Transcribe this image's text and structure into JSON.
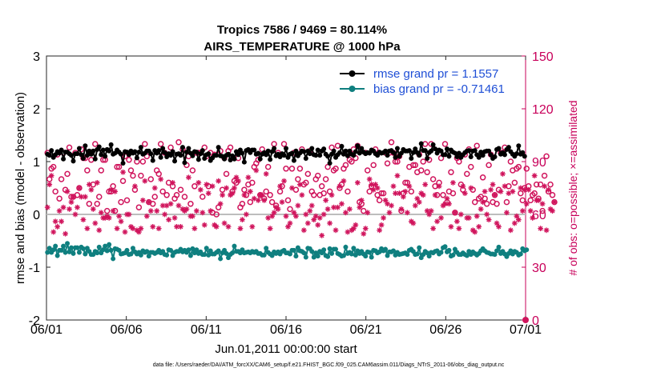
{
  "colors": {
    "rmse": "#000000",
    "bias": "#0f7f7f",
    "obs": "#d0145c",
    "zero_line": "#bdbdbd",
    "legend_text": "#1f4fd6",
    "right_axis": "#c8005a"
  },
  "chart_data": {
    "type": "line",
    "title": "Tropics 7586 / 9469 = 80.114%",
    "subtitle": "AIRS_TEMPERATURE @ 1000 hPa",
    "xlabel": "Jun.01,2011 00:00:00 start",
    "ylabel": "rmse and bias (model - observation)",
    "y2label": "# of obs: o=possible; ×=assimilated",
    "xlim": [
      0,
      30
    ],
    "ylim": [
      -2,
      3
    ],
    "y2lim": [
      0,
      150
    ],
    "x_ticks": [
      0,
      5,
      10,
      15,
      20,
      25,
      30
    ],
    "x_tick_labels": [
      "06/01",
      "06/06",
      "06/11",
      "06/16",
      "06/21",
      "06/26",
      "07/01"
    ],
    "y_ticks": [
      -2,
      -1,
      0,
      1,
      2,
      3
    ],
    "y_tick_labels": [
      "-2",
      "-1",
      "0",
      "1",
      "2",
      "3"
    ],
    "y2_ticks": [
      0,
      30,
      60,
      90,
      120,
      150
    ],
    "y2_tick_labels": [
      "0",
      "30",
      "60",
      "90",
      "120",
      "150"
    ],
    "legend_position": "top-right",
    "footnote": "data file: /Users/raeder/DAI/ATM_forcXX/CAM6_setup/f.e21.FHIST_BGC.f09_025.CAM6assim.011/Diags_NTrS_2011-06/obs_diag_output.nc",
    "series": [
      {
        "name": "rmse grand pr = 1.1557",
        "values": [
          1.14,
          1.12,
          1.21,
          1.08,
          1.13,
          1.19,
          1.16,
          1.22,
          1.05,
          1.18,
          1.18,
          1.15,
          1.12,
          1.01,
          1.15,
          1.15,
          1.25,
          1.13,
          1.06,
          1.3,
          1.12,
          1.2,
          1.14,
          1.2,
          1.05,
          1.23,
          1.28,
          1.13,
          1.22,
          1.1,
          1.23,
          1.2,
          1.32,
          1.14,
          1.16,
          1.22,
          1.18,
          1.14,
          0.97,
          1.19,
          1.18,
          1.13,
          1.2,
          1.16,
          1.19,
          1.07,
          1.18,
          1.27,
          1.14,
          1.16,
          1.2,
          1.2,
          1.15,
          1.02,
          1.21,
          1.16,
          1.21,
          1.08,
          1.25,
          1.17,
          1.09,
          1.15,
          1.12,
          1.19,
          1.01,
          1.14,
          1.15,
          1.12,
          1.27,
          0.98,
          1.18,
          1.25,
          1.16,
          1.11,
          1.19,
          1.18,
          1.04,
          1.15,
          1.21,
          1.06,
          1.13,
          1.15,
          1.02,
          1.07,
          1.12,
          1.12,
          1.27,
          1.11,
          1.1,
          1.05,
          1.12,
          1.14,
          1.03,
          1.11,
          1.05,
          1.19,
          1.13,
          1.22,
          1.16,
          0.99,
          1.21,
          1.23,
          1.17,
          1.22,
          1.22,
          1.14,
          1.16,
          1.05,
          1.14,
          1.17,
          1.13,
          1.2,
          1.04,
          1.19,
          1.25,
          1.11,
          1.14,
          1.09,
          1.15,
          1.12,
          1.25,
          1.08,
          1.14,
          1.16,
          1.02,
          1.2,
          1.11,
          1.16,
          1.2,
          1.19,
          1.06,
          1.2,
          1.15,
          1.25,
          1.13,
          1.12,
          1.22,
          1.12,
          1.2,
          1.24,
          1.14,
          1.1,
          0.97,
          1.14,
          1.2,
          1.08,
          1.13,
          1.17,
          1.29,
          1.14,
          1.2,
          1.11,
          1.2,
          1.14,
          1.12,
          1.19,
          1.3,
          1.16,
          1.25,
          1.18,
          1.15,
          1.17,
          1.16,
          1.22,
          1.2,
          1.15,
          1.12,
          1.18,
          1.16,
          1.17,
          1.2,
          1.12,
          1.2,
          1.21,
          1.17,
          1.08,
          1.25,
          1.1,
          1.16,
          1.23,
          1.2,
          1.2,
          1.21,
          1.06,
          1.17,
          1.24,
          1.17,
          1.12,
          1.34,
          1.21,
          1.21,
          1.06,
          1.17,
          1.2,
          1.32,
          1.24,
          1.16,
          1.22,
          1.2,
          1.13,
          1.13,
          1.24,
          1.1,
          1.22,
          1.18,
          1.16,
          1.09,
          1.16,
          1.08,
          1.13,
          1.17,
          1.2,
          1.21,
          1.09,
          1.2,
          1.21,
          1.13,
          1.08,
          1.18,
          1.12,
          1.19,
          1.2,
          1.2,
          1.13,
          1.06,
          1.09,
          1.23,
          1.25,
          1.14,
          1.17,
          1.13,
          1.23,
          1.27,
          1.19,
          1.14,
          1.1,
          1.15,
          1.3,
          1.14,
          1.17,
          1.1
        ]
      },
      {
        "name": "bias grand pr = -0.71461",
        "values": [
          -0.72,
          -0.64,
          -0.72,
          -0.67,
          -0.6,
          -0.78,
          -0.68,
          -0.68,
          -0.6,
          -0.72,
          -0.55,
          -0.71,
          -0.63,
          -0.74,
          -0.63,
          -0.63,
          -0.72,
          -0.62,
          -0.65,
          -0.75,
          -0.64,
          -0.7,
          -0.76,
          -0.76,
          -0.7,
          -0.73,
          -0.62,
          -0.73,
          -0.67,
          -0.6,
          -0.69,
          -0.57,
          -0.68,
          -0.84,
          -0.65,
          -0.66,
          -0.68,
          -0.75,
          -0.74,
          -0.73,
          -0.68,
          -0.76,
          -0.75,
          -0.64,
          -0.71,
          -0.75,
          -0.72,
          -0.77,
          -0.69,
          -0.72,
          -0.7,
          -0.79,
          -0.72,
          -0.72,
          -0.74,
          -0.72,
          -0.68,
          -0.73,
          -0.7,
          -0.76,
          -0.77,
          -0.67,
          -0.68,
          -0.78,
          -0.72,
          -0.7,
          -0.7,
          -0.66,
          -0.71,
          -0.68,
          -0.72,
          -0.67,
          -0.78,
          -0.65,
          -0.73,
          -0.67,
          -0.74,
          -0.71,
          -0.76,
          -0.76,
          -0.64,
          -0.77,
          -0.69,
          -0.75,
          -0.75,
          -0.72,
          -0.69,
          -0.84,
          -0.73,
          -0.68,
          -0.74,
          -0.82,
          -0.76,
          -0.73,
          -0.6,
          -0.7,
          -0.7,
          -0.73,
          -0.67,
          -0.73,
          -0.72,
          -0.71,
          -0.73,
          -0.7,
          -0.72,
          -0.7,
          -0.74,
          -0.74,
          -0.77,
          -0.77,
          -0.64,
          -0.72,
          -0.75,
          -0.78,
          -0.71,
          -0.74,
          -0.71,
          -0.75,
          -0.7,
          -0.68,
          -0.73,
          -0.73,
          -0.75,
          -0.68,
          -0.68,
          -0.79,
          -0.63,
          -0.69,
          -0.7,
          -0.73,
          -0.81,
          -0.64,
          -0.65,
          -0.7,
          -0.81,
          -0.73,
          -0.79,
          -0.7,
          -0.73,
          -0.67,
          -0.78,
          -0.8,
          -0.65,
          -0.74,
          -0.66,
          -0.66,
          -0.74,
          -0.76,
          -0.79,
          -0.78,
          -0.62,
          -0.74,
          -0.72,
          -0.75,
          -0.64,
          -0.77,
          -0.69,
          -0.74,
          -0.7,
          -0.75,
          -0.79,
          -0.71,
          -0.72,
          -0.81,
          -0.68,
          -0.69,
          -0.73,
          -0.71,
          -0.65,
          -0.69,
          -0.66,
          -0.78,
          -0.71,
          -0.71,
          -0.69,
          -0.77,
          -0.72,
          -0.76,
          -0.75,
          -0.74,
          -0.73,
          -0.76,
          -0.68,
          -0.66,
          -0.7,
          -0.76,
          -0.75,
          -0.63,
          -0.82,
          -0.76,
          -0.7,
          -0.73,
          -0.79,
          -0.72,
          -0.73,
          -0.7,
          -0.69,
          -0.75,
          -0.72,
          -0.63,
          -0.61,
          -0.71,
          -0.68,
          -0.79,
          -0.77,
          -0.66,
          -0.72,
          -0.76,
          -0.76,
          -0.73,
          -0.76,
          -0.78,
          -0.7,
          -0.76,
          -0.71,
          -0.74,
          -0.77,
          -0.74,
          -0.69,
          -0.65,
          -0.69,
          -0.72,
          -0.73,
          -0.75,
          -0.75,
          -0.76,
          -0.69,
          -0.62,
          -0.74,
          -0.7,
          -0.75,
          -0.8,
          -0.74,
          -0.69,
          -0.75,
          -0.7,
          -0.72,
          -0.77,
          -0.75,
          -0.65,
          -0.69,
          -0.67
        ]
      },
      {
        "name": "possible obs",
        "values": [
          95,
          80,
          86,
          87,
          73,
          94,
          69,
          80,
          95,
          74,
          83,
          98,
          70,
          70,
          95,
          71,
          75,
          97,
          92,
          92,
          85,
          66,
          91,
          77,
          100,
          66,
          70,
          85,
          91,
          91,
          62,
          73,
          73,
          76,
          62,
          87,
          87,
          67,
          79,
          93,
          68,
          91,
          85,
          82,
          74,
          90,
          64,
          82,
          90,
          100,
          93,
          67,
          80,
          66,
          70,
          85,
          83,
          100,
          73,
          95,
          71,
          78,
          98,
          76,
          69,
          71,
          101,
          74,
          97,
          70,
          88,
          93,
          66,
          85,
          76,
          95,
          95,
          95,
          70,
          98,
          93,
          76,
          95,
          61,
          94,
          60,
          64,
          96,
          74,
          92,
          83,
          96,
          98,
          73,
          79,
          78,
          92,
          64,
          66,
          74,
          71,
          77,
          67,
          78,
          87,
          89,
          91,
          71,
          97,
          69,
          73,
          87,
          71,
          67,
          100,
          65,
          95,
          73,
          76,
          100,
          86,
          68,
          63,
          86,
          95,
          74,
          80,
          86,
          97,
          77,
          78,
          83,
          96,
          73,
          71,
          80,
          82,
          71,
          76,
          72,
          80,
          87,
          73,
          98,
          85,
          86,
          99,
          75,
          77,
          86,
          88,
          73,
          91,
          90,
          97,
          92,
          99,
          67,
          66,
          62,
          95,
          85,
          73,
          76,
          88,
          97,
          71,
          68,
          72,
          72,
          95,
          89,
          95,
          101,
          95,
          90,
          90,
          93,
          62,
          72,
          78,
          78,
          87,
          73,
          88,
          88,
          84,
          94,
          85,
          90,
          100,
          84,
          91,
          100,
          80,
          76,
          71,
          78,
          92,
          71,
          100,
          67,
          73,
          84,
          72,
          61,
          92,
          90,
          77,
          74,
          94,
          83,
          97,
          87,
          74,
          67,
          99,
          69,
          70,
          81,
          69,
          66,
          88,
          94,
          67,
          71,
          66,
          74,
          95,
          95,
          98,
          67,
          76,
          90,
          85,
          78,
          86,
          87,
          72,
          68,
          75,
          86,
          76,
          68,
          71,
          72,
          77,
          69,
          77,
          62,
          82,
          93,
          73,
          77,
          71,
          67
        ]
      },
      {
        "name": "assimilated obs",
        "values": [
          64,
          77,
          82,
          50,
          56,
          53,
          62,
          56,
          64,
          49,
          73,
          63,
          67,
          70,
          60,
          64,
          75,
          70,
          57,
          70,
          52,
          77,
          74,
          63,
          55,
          78,
          51,
          61,
          58,
          58,
          59,
          58,
          74,
          62,
          73,
          52,
          59,
          56,
          84,
          50,
          60,
          60,
          53,
          52,
          76,
          51,
          50,
          52,
          68,
          79,
          59,
          67,
          62,
          53,
          75,
          62,
          52,
          80,
          65,
          60,
          65,
          57,
          66,
          78,
          58,
          53,
          65,
          53,
          63,
          62,
          63,
          81,
          59,
          59,
          52,
          62,
          78,
          74,
          61,
          54,
          77,
          72,
          62,
          76,
          54,
          53,
          79,
          66,
          71,
          55,
          75,
          53,
          71,
          72,
          75,
          81,
          79,
          52,
          57,
          71,
          60,
          81,
          73,
          53,
          69,
          85,
          68,
          71,
          71,
          68,
          83,
          58,
          52,
          59,
          61,
          64,
          63,
          76,
          67,
          79,
          59,
          53,
          55,
          75,
          61,
          59,
          65,
          77,
          71,
          51,
          60,
          55,
          62,
          65,
          57,
          59,
          54,
          58,
          48,
          60,
          68,
          63,
          55,
          71,
          64,
          51,
          64,
          76,
          66,
          79,
          61,
          50,
          63,
          51,
          52,
          54,
          78,
          64,
          68,
          49,
          52,
          61,
          80,
          77,
          74,
          77,
          75,
          51,
          54,
          58,
          68,
          66,
          61,
          65,
          76,
          72,
          82,
          72,
          63,
          70,
          73,
          61,
          76,
          56,
          55,
          65,
          69,
          67,
          72,
          71,
          77,
          62,
          60,
          62,
          52,
          71,
          56,
          76,
          58,
          65,
          66,
          69,
          66,
          53,
          78,
          61,
          56,
          52,
          60,
          76,
          72,
          58,
          58,
          75,
          51,
          50,
          59,
          53,
          63,
          67,
          73,
          60,
          57,
          74,
          77,
          71,
          55,
          53,
          73,
          83,
          76,
          61,
          72,
          51,
          73,
          55,
          59,
          57,
          75,
          62,
          74,
          66,
          74,
          62,
          58,
          82,
          68,
          68,
          52,
          66,
          76,
          51,
          74,
          63,
          62,
          67
        ]
      }
    ]
  }
}
